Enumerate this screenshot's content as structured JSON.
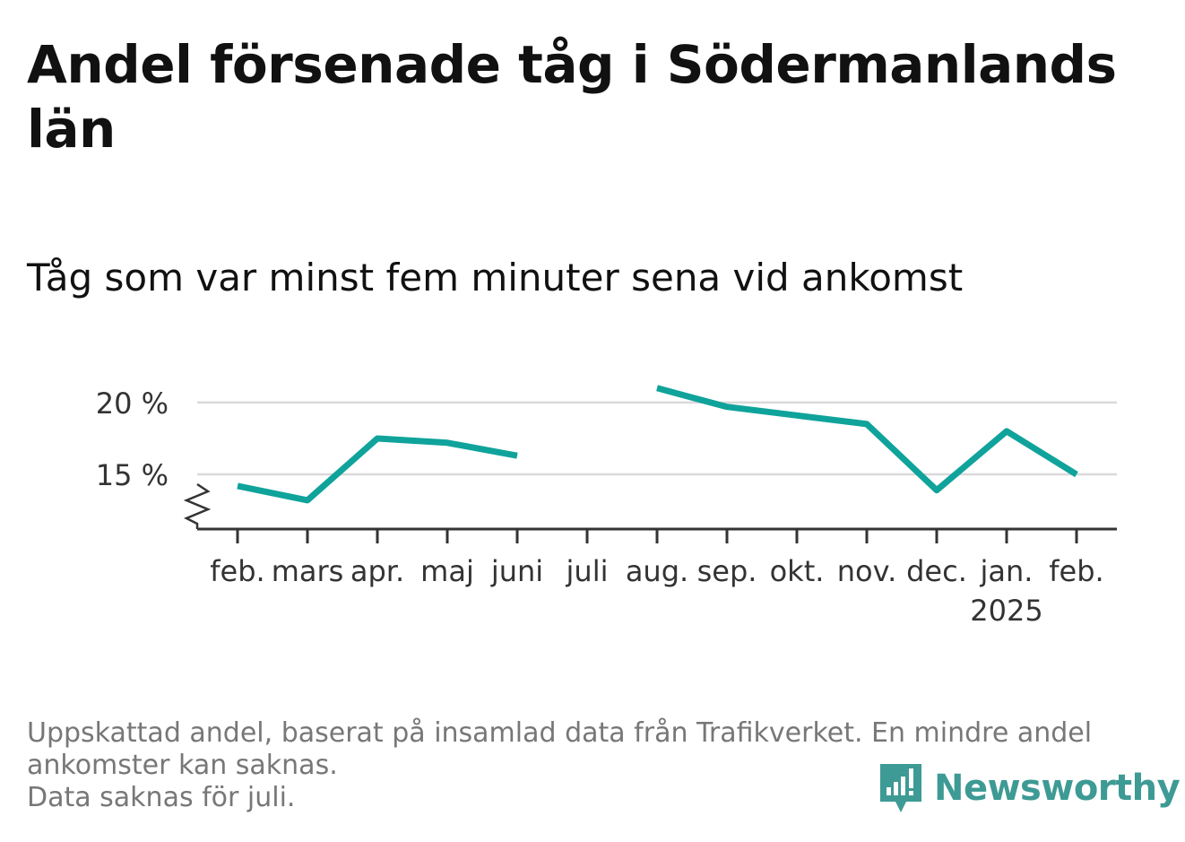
{
  "title": "Andel försenade tåg i Södermanlands län",
  "subtitle": "Tåg som var minst fem minuter sena vid ankomst",
  "footnote": {
    "line1": "Uppskattad andel, baserat på insamlad data från Trafikverket. En mindre andel",
    "line2": "ankomster kan saknas.",
    "line3": "Data saknas för juli."
  },
  "logo": {
    "text": "Newsworthy",
    "color": "#3d9a94"
  },
  "chart_data": {
    "type": "line",
    "categories": [
      "feb.",
      "mars",
      "apr.",
      "maj",
      "juni",
      "juli",
      "aug.",
      "sep.",
      "okt.",
      "nov.",
      "dec.",
      "jan.",
      "feb."
    ],
    "year_label": "2025",
    "year_label_index": 11,
    "series": [
      {
        "color": "#0fa39b",
        "values": [
          14.2,
          13.2,
          17.5,
          17.2,
          16.3,
          null,
          21.0,
          19.7,
          19.1,
          18.5,
          13.9,
          18.0,
          15.0
        ]
      }
    ],
    "y_ticks": [
      {
        "value": 15,
        "label": "15 %"
      },
      {
        "value": 20,
        "label": "20 %"
      }
    ],
    "ylim": [
      11.2,
      21.8
    ],
    "grid": true,
    "axis_break": true
  }
}
